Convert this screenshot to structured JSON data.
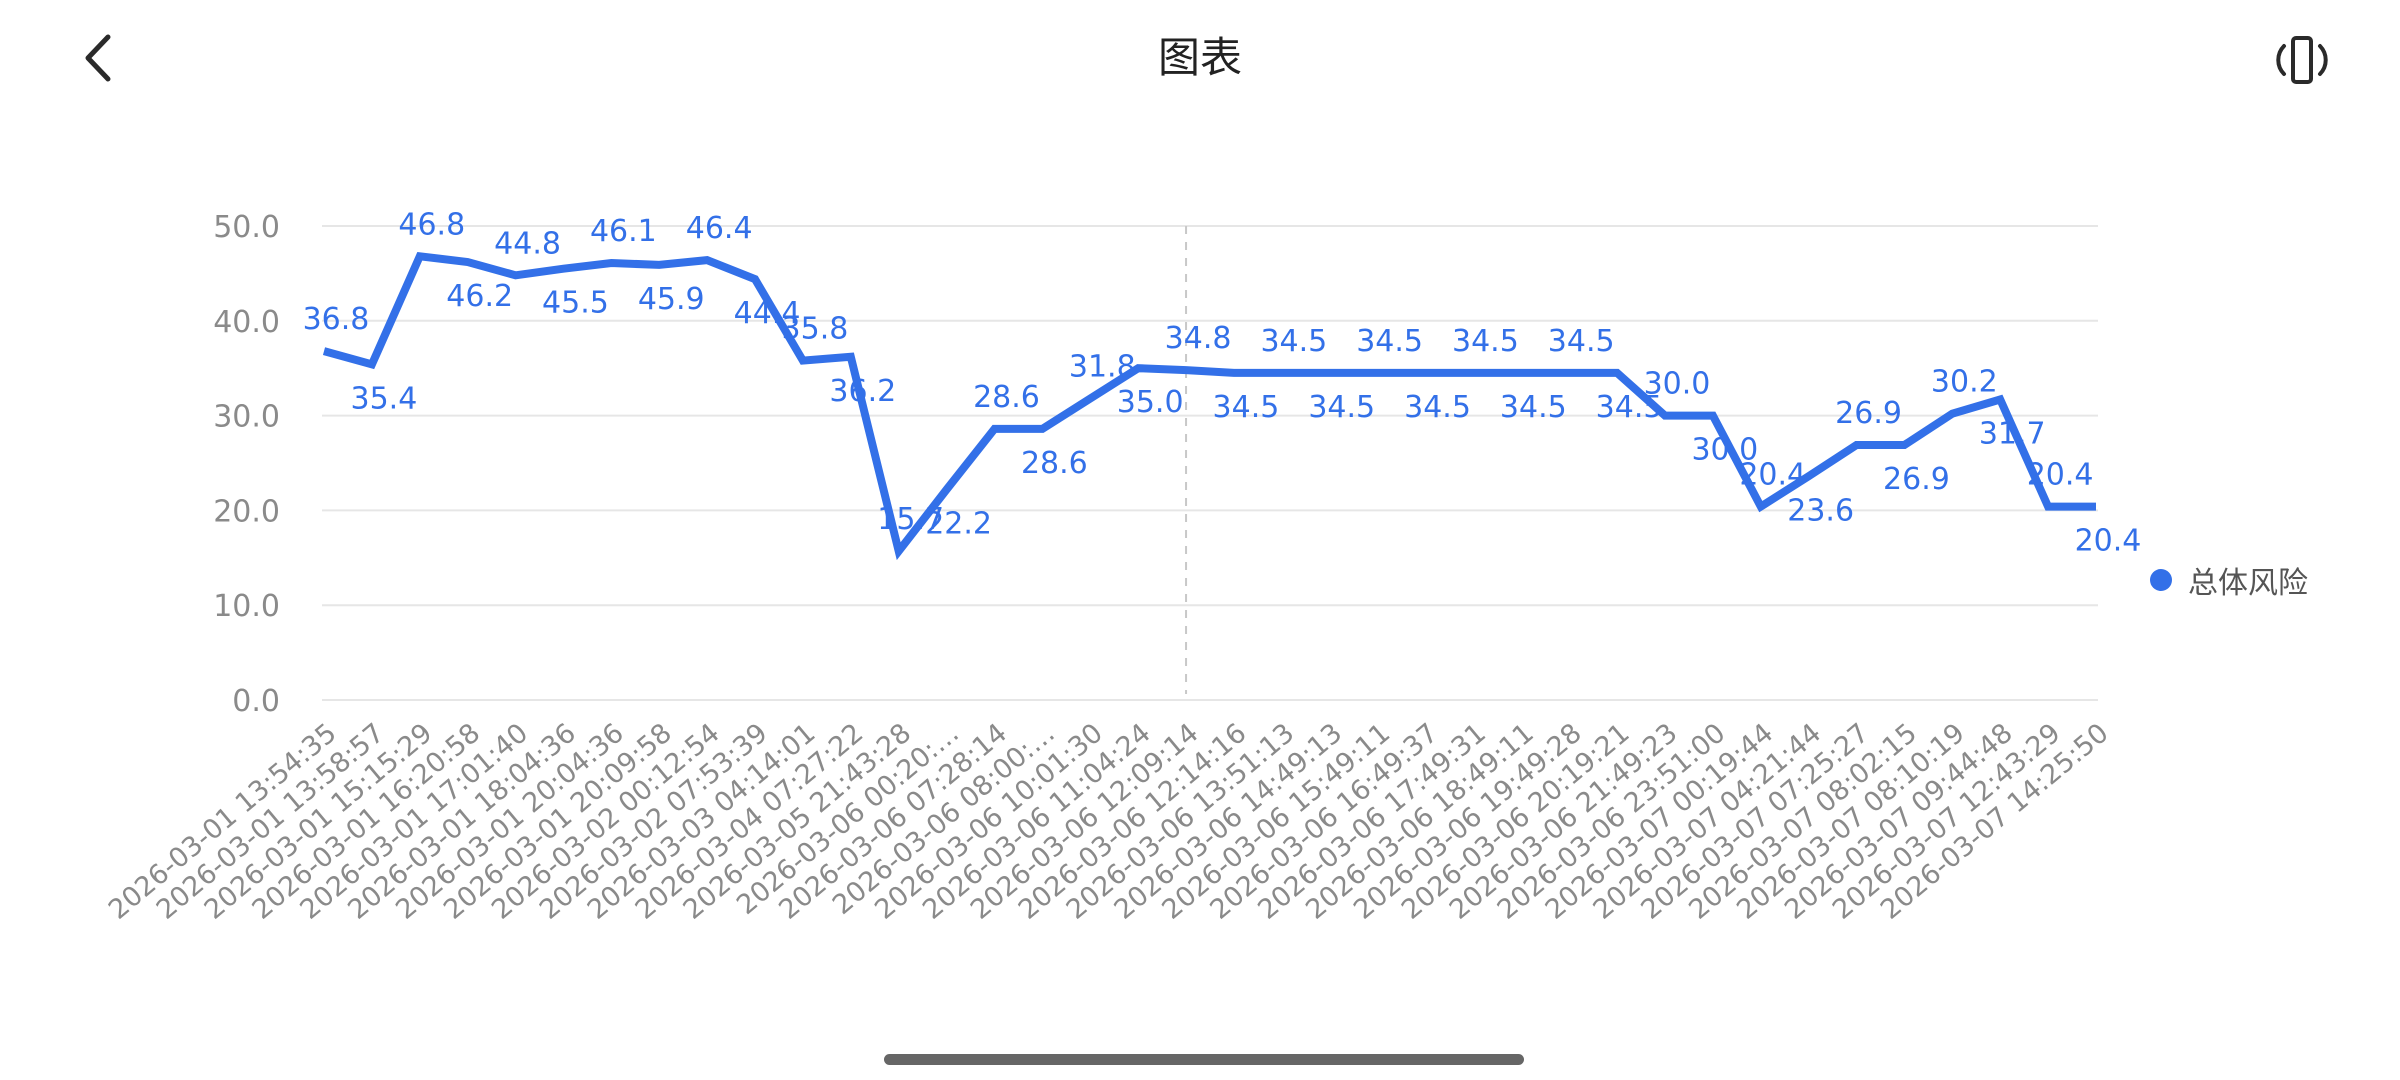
{
  "header": {
    "title": "图表",
    "back_icon": "chevron-left-icon",
    "rotate_icon": "screen-rotation-icon"
  },
  "colors": {
    "series": "#3370E8",
    "axis_text": "#8a8a8a",
    "grid": "#e6e6e6",
    "title": "#222222"
  },
  "legend": {
    "items": [
      {
        "label": "总体风险",
        "color": "#3370E8"
      }
    ]
  },
  "chart_data": {
    "type": "line",
    "title": "图表",
    "xlabel": "",
    "ylabel": "",
    "ylim": [
      0,
      50
    ],
    "yticks": [
      "0.0",
      "10.0",
      "20.0",
      "30.0",
      "40.0",
      "50.0"
    ],
    "grid": true,
    "legend_position": "right",
    "categories": [
      "2026-03-01 13:54:35",
      "2026-03-01 13:58:57",
      "2026-03-01 15:15:29",
      "2026-03-01 16:20:58",
      "2026-03-01 17:01:40",
      "2026-03-01 18:04:36",
      "2026-03-01 20:04:36",
      "2026-03-01 20:09:58",
      "2026-03-02 00:12:54",
      "2026-03-02 07:53:39",
      "2026-03-03 04:14:01",
      "2026-03-04 07:27:22",
      "2026-03-05 21:43:28",
      "2026-03-06 00:20:…",
      "2026-03-06 07:28:14",
      "2026-03-06 08:00:…",
      "2026-03-06 10:01:30",
      "2026-03-06 11:04:24",
      "2026-03-06 12:09:14",
      "2026-03-06 12:14:16",
      "2026-03-06 13:51:13",
      "2026-03-06 14:49:13",
      "2026-03-06 15:49:11",
      "2026-03-06 16:49:37",
      "2026-03-06 17:49:31",
      "2026-03-06 18:49:11",
      "2026-03-06 19:49:28",
      "2026-03-06 20:19:21",
      "2026-03-06 21:49:23",
      "2026-03-06 23:51:00",
      "2026-03-07 00:19:44",
      "2026-03-07 04:21:44",
      "2026-03-07 07:25:27",
      "2026-03-07 08:02:15",
      "2026-03-07 08:10:19",
      "2026-03-07 09:44:48",
      "2026-03-07 12:43:29",
      "2026-03-07 14:25:50"
    ],
    "series": [
      {
        "name": "总体风险",
        "color": "#3370E8",
        "values": [
          36.8,
          35.4,
          46.8,
          46.2,
          44.8,
          45.5,
          46.1,
          45.9,
          46.4,
          44.4,
          35.8,
          36.2,
          15.7,
          22.2,
          28.6,
          28.6,
          31.8,
          35.0,
          34.8,
          34.5,
          34.5,
          34.5,
          34.5,
          34.5,
          34.5,
          34.5,
          34.5,
          34.5,
          30.0,
          30.0,
          20.4,
          23.6,
          26.9,
          26.9,
          30.2,
          31.7,
          20.4,
          20.4
        ]
      }
    ],
    "annotations": [
      {
        "type": "crosshair-vertical-dashed",
        "at_index": 18
      }
    ]
  }
}
